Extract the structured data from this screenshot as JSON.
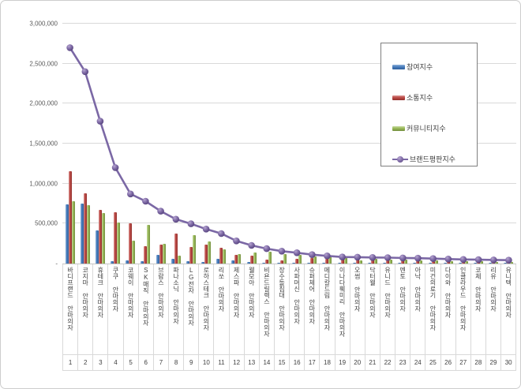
{
  "chart": {
    "y_axis": {
      "tick_values": [
        3000000,
        2500000,
        2000000,
        1500000,
        1000000,
        500000,
        0
      ],
      "tick_labels": [
        "3,000,000",
        "2,500,000",
        "2,000,000",
        "1,500,000",
        "1,000,000",
        "500,000",
        "-"
      ]
    },
    "legend": [
      {
        "key": "participation",
        "label": "참여지수",
        "type": "bar",
        "color": "#4a7ebb"
      },
      {
        "key": "communication",
        "label": "소통지수",
        "type": "bar",
        "color": "#bc4b47"
      },
      {
        "key": "community",
        "label": "커뮤니티지수",
        "type": "bar",
        "color": "#9aba59"
      },
      {
        "key": "brand-reputation",
        "label": "브랜드평판지수",
        "type": "line",
        "color": "#7b68a5"
      }
    ],
    "colors": {
      "grid": "#d9d9d9",
      "axis_text": "#595959",
      "label_text": "#404040",
      "line": "#7b68a5"
    }
  },
  "chart_data": {
    "type": "bar",
    "subtype": "grouped-bars-with-line",
    "title": "",
    "xlabel": "",
    "ylabel": "",
    "ylim": [
      0,
      3000000
    ],
    "grid": true,
    "legend_position": "upper right",
    "categories": [
      "바디프랜드 안마의자",
      "코지마 안마의자",
      "휴테크 안마의자",
      "쿠쿠 안마의자",
      "코웨이 안마의자",
      "SK매직 안마의자",
      "브람스 안마의자",
      "파나소닉 안마의자",
      "LG전자 안마의자",
      "로하스테크 안마의자",
      "리쏘 안마의자",
      "제스파 안마의자",
      "웰모아 안마의자",
      "비욘드릴렉스 안마의자",
      "장수돌침대 안마의자",
      "사파머신 안마의자",
      "슈퍼체어 안마의자",
      "메디칼드림 안마의자",
      "이나다훼미리 안마의자",
      "오썸 안마의자",
      "닥터웰 안마의자",
      "유니드 안마의자",
      "멘토 안마의자",
      "아낙 안마의자",
      "미건의료기 안마의자",
      "다이와 안마의자",
      "인클라우드 안마의자",
      "코체 안마의자",
      "리유 안마의자",
      "유니텍 안마의자"
    ],
    "ranks": [
      "1",
      "2",
      "3",
      "4",
      "5",
      "6",
      "7",
      "8",
      "9",
      "10",
      "11",
      "12",
      "13",
      "14",
      "15",
      "16",
      "17",
      "18",
      "19",
      "20",
      "21",
      "22",
      "23",
      "24",
      "25",
      "26",
      "27",
      "28",
      "29",
      "30"
    ],
    "series": [
      {
        "name": "참여지수",
        "key": "participation",
        "type": "bar",
        "color": "#4a7ebb",
        "values": [
          740000,
          750000,
          410000,
          30000,
          35000,
          25000,
          110000,
          60000,
          25000,
          20000,
          55000,
          40000,
          15000,
          10000,
          10000,
          8000,
          8000,
          8000,
          10000,
          6000,
          5000,
          5000,
          4000,
          4000,
          4000,
          3000,
          3000,
          3000,
          2000,
          2000
        ]
      },
      {
        "name": "소통지수",
        "key": "communication",
        "type": "bar",
        "color": "#bc4b47",
        "values": [
          1150000,
          880000,
          670000,
          640000,
          500000,
          215000,
          240000,
          375000,
          210000,
          235000,
          197000,
          105000,
          100000,
          50000,
          42000,
          58000,
          68000,
          64000,
          60000,
          80000,
          45000,
          40000,
          38000,
          35000,
          32000,
          30000,
          28000,
          25000,
          22000,
          20000
        ]
      },
      {
        "name": "커뮤니티지수",
        "key": "community",
        "type": "bar",
        "color": "#9aba59",
        "values": [
          780000,
          730000,
          630000,
          510000,
          290000,
          480000,
          245000,
          100000,
          355000,
          280000,
          175000,
          115000,
          140000,
          145000,
          115000,
          112000,
          88000,
          90000,
          82000,
          40000,
          55000,
          50000,
          45000,
          40000,
          35000,
          32000,
          28000,
          26000,
          24000,
          22000
        ]
      },
      {
        "name": "브랜드평판지수",
        "key": "brand-reputation",
        "type": "line",
        "color": "#7b68a5",
        "values": [
          2700000,
          2400000,
          1780000,
          1200000,
          870000,
          780000,
          655000,
          555000,
          497000,
          431000,
          375000,
          283000,
          227000,
          187000,
          155000,
          135000,
          112000,
          96000,
          82000,
          80000,
          76000,
          74000,
          70000,
          67000,
          62000,
          56000,
          51000,
          48000,
          45000,
          42000
        ]
      }
    ]
  }
}
